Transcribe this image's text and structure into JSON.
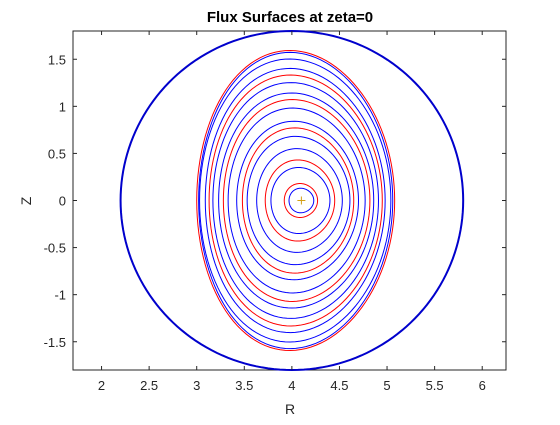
{
  "chart_data": {
    "type": "line",
    "title": "Flux Surfaces at zeta=0",
    "xlabel": "R",
    "ylabel": "Z",
    "xlim": [
      1.7,
      6.25
    ],
    "ylim": [
      -1.8,
      1.8
    ],
    "xticks": [
      2,
      2.5,
      3,
      3.5,
      4,
      4.5,
      5,
      5.5,
      6
    ],
    "xtick_labels": [
      "2",
      "2.5",
      "3",
      "3.5",
      "4",
      "4.5",
      "5",
      "5.5",
      "6"
    ],
    "yticks": [
      -1.5,
      -1,
      -0.5,
      0,
      0.5,
      1,
      1.5
    ],
    "ytick_labels": [
      "-1.5",
      "-1",
      "-0.5",
      "0",
      "0.5",
      "1",
      "1.5"
    ],
    "grid": false,
    "colors": {
      "blue": "#0000ff",
      "red": "#ff0000",
      "wall": "#0000cc",
      "axis": "#d4a017"
    },
    "boundary": {
      "type": "circle",
      "center": [
        4.0,
        0.0
      ],
      "radius": 1.8,
      "color": "#0000cc"
    },
    "magnetic_axis": {
      "r": 4.1,
      "z": 0.0,
      "marker": "+",
      "color": "#d4a017"
    },
    "series": [
      {
        "color": "#0000ff",
        "r0": 4.1,
        "rin": 3.97,
        "rout": 4.23,
        "z": 0.13
      },
      {
        "color": "#ff0000",
        "r0": 4.1,
        "rin": 3.92,
        "rout": 4.27,
        "z": 0.18
      },
      {
        "color": "#0000ff",
        "r0": 4.09,
        "rin": 3.78,
        "rout": 4.4,
        "z": 0.35
      },
      {
        "color": "#ff0000",
        "r0": 4.09,
        "rin": 3.72,
        "rout": 4.45,
        "z": 0.43
      },
      {
        "color": "#0000ff",
        "r0": 4.08,
        "rin": 3.63,
        "rout": 4.53,
        "z": 0.55
      },
      {
        "color": "#0000ff",
        "r0": 4.07,
        "rin": 3.53,
        "rout": 4.61,
        "z": 0.68
      },
      {
        "color": "#ff0000",
        "r0": 4.07,
        "rin": 3.48,
        "rout": 4.65,
        "z": 0.77
      },
      {
        "color": "#0000ff",
        "r0": 4.06,
        "rin": 3.42,
        "rout": 4.7,
        "z": 0.84
      },
      {
        "color": "#0000ff",
        "r0": 4.05,
        "rin": 3.33,
        "rout": 4.77,
        "z": 0.98
      },
      {
        "color": "#ff0000",
        "r0": 4.05,
        "rin": 3.28,
        "rout": 4.82,
        "z": 1.07
      },
      {
        "color": "#0000ff",
        "r0": 4.04,
        "rin": 3.23,
        "rout": 4.86,
        "z": 1.14
      },
      {
        "color": "#0000ff",
        "r0": 4.03,
        "rin": 3.17,
        "rout": 4.91,
        "z": 1.25
      },
      {
        "color": "#ff0000",
        "r0": 4.03,
        "rin": 3.13,
        "rout": 4.95,
        "z": 1.33
      },
      {
        "color": "#0000ff",
        "r0": 4.02,
        "rin": 3.09,
        "rout": 4.98,
        "z": 1.4
      },
      {
        "color": "#0000ff",
        "r0": 4.01,
        "rin": 3.03,
        "rout": 5.04,
        "z": 1.5
      },
      {
        "color": "#ff0000",
        "r0": 4.0,
        "rin": 3.0,
        "rout": 5.08,
        "z": 1.59
      },
      {
        "color": "#0000ff",
        "r0": 4.0,
        "rin": 3.02,
        "rout": 5.06,
        "z": 1.57
      }
    ]
  }
}
